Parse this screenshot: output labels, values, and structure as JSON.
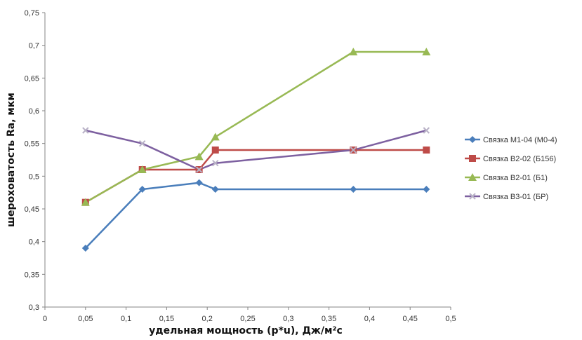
{
  "chart_data": {
    "type": "line",
    "xlabel": "удельная мощность (p*u), Дж/м²с",
    "ylabel": "шероховатость Ra, мкм",
    "xlim": [
      0,
      0.5
    ],
    "ylim": [
      0.3,
      0.75
    ],
    "x_ticks": [
      "0",
      "0,05",
      "0,1",
      "0,15",
      "0,2",
      "0,25",
      "0,3",
      "0,35",
      "0,4",
      "0,45",
      "0,5"
    ],
    "y_ticks": [
      "0,3",
      "0,35",
      "0,4",
      "0,45",
      "0,5",
      "0,55",
      "0,6",
      "0,65",
      "0,7",
      "0,75"
    ],
    "grid": false,
    "legend_position": "right",
    "series": [
      {
        "name": "Связка М1-04 (М0-4)",
        "color": "#4a7ebb",
        "marker": "diamond",
        "points": [
          [
            0.05,
            0.39
          ],
          [
            0.12,
            0.48
          ],
          [
            0.19,
            0.49
          ],
          [
            0.21,
            0.48
          ],
          [
            0.38,
            0.48
          ],
          [
            0.47,
            0.48
          ]
        ]
      },
      {
        "name": "Связка В2-02 (Б156)",
        "color": "#be4b48",
        "marker": "square",
        "points": [
          [
            0.05,
            0.46
          ],
          [
            0.12,
            0.51
          ],
          [
            0.19,
            0.51
          ],
          [
            0.21,
            0.54
          ],
          [
            0.38,
            0.54
          ],
          [
            0.47,
            0.54
          ]
        ]
      },
      {
        "name": "Связка В2-01 (Б1)",
        "color": "#98b954",
        "marker": "triangle",
        "points": [
          [
            0.05,
            0.46
          ],
          [
            0.12,
            0.51
          ],
          [
            0.19,
            0.53
          ],
          [
            0.21,
            0.56
          ],
          [
            0.38,
            0.69
          ],
          [
            0.47,
            0.69
          ]
        ]
      },
      {
        "name": "Связка В3-01 (БР)",
        "color": "#7d60a0",
        "marker": "x",
        "points": [
          [
            0.05,
            0.57
          ],
          [
            0.12,
            0.55
          ],
          [
            0.19,
            0.51
          ],
          [
            0.21,
            0.52
          ],
          [
            0.38,
            0.54
          ],
          [
            0.47,
            0.57
          ]
        ]
      }
    ]
  }
}
